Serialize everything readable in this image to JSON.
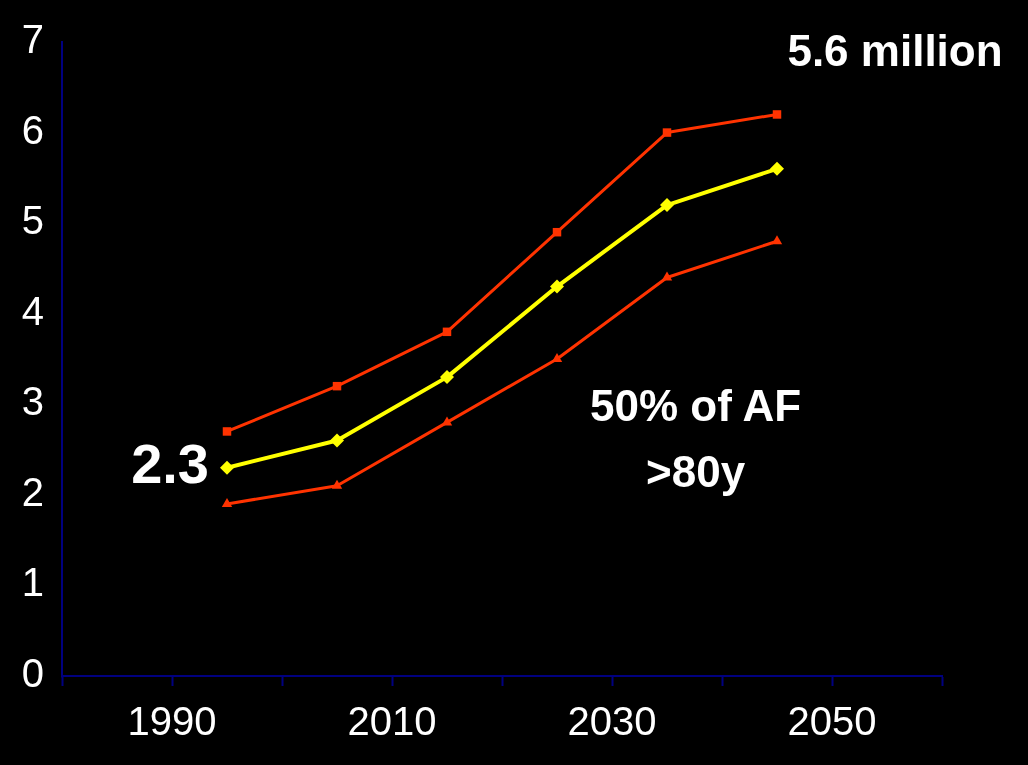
{
  "chart_data": {
    "type": "line",
    "x": [
      1995,
      2005,
      2015,
      2025,
      2035,
      2045
    ],
    "series": [
      {
        "color": "#ff3300",
        "marker": "square",
        "values": [
          2.7,
          3.2,
          3.8,
          4.9,
          6.0,
          6.2
        ]
      },
      {
        "color": "#ffff00",
        "marker": "diamond",
        "values": [
          2.3,
          2.6,
          3.3,
          4.3,
          5.2,
          5.6
        ]
      },
      {
        "color": "#ff3300",
        "marker": "triangle",
        "values": [
          1.9,
          2.1,
          2.8,
          3.5,
          4.4,
          4.8
        ]
      }
    ],
    "xlim": [
      1980,
      2060
    ],
    "xticks": [
      {
        "value": 1980,
        "label": null
      },
      1990,
      {
        "value": 2000,
        "label": null
      },
      2010,
      {
        "value": 2020,
        "label": null
      },
      2030,
      {
        "value": 2040,
        "label": null
      },
      2050,
      {
        "value": 2060,
        "label": null
      }
    ],
    "ylim": [
      0,
      7
    ],
    "yticks": [
      0,
      1,
      2,
      3,
      4,
      5,
      6,
      7
    ],
    "grid": false,
    "legend": false,
    "annotations": [
      {
        "text": "2.3",
        "x": 1995,
        "y": 2.3
      },
      {
        "text": "5.6 million",
        "x": 2045,
        "y": 5.6
      },
      "50% of AF\n>80y"
    ]
  }
}
